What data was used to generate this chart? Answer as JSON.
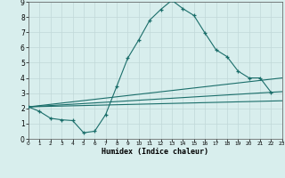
{
  "xlabel": "Humidex (Indice chaleur)",
  "background_color": "#d8eeed",
  "line_color": "#1a6e6a",
  "xlim": [
    0,
    23
  ],
  "ylim": [
    0,
    9
  ],
  "xticks": [
    0,
    1,
    2,
    3,
    4,
    5,
    6,
    7,
    8,
    9,
    10,
    11,
    12,
    13,
    14,
    15,
    16,
    17,
    18,
    19,
    20,
    21,
    22,
    23
  ],
  "yticks": [
    0,
    1,
    2,
    3,
    4,
    5,
    6,
    7,
    8,
    9
  ],
  "main_series": {
    "x": [
      0,
      1,
      2,
      3,
      4,
      5,
      6,
      7,
      8,
      9,
      10,
      11,
      12,
      13,
      14,
      15,
      16,
      17,
      18,
      19,
      20,
      21,
      22,
      23
    ],
    "y": [
      2.1,
      1.8,
      1.35,
      1.25,
      1.2,
      0.4,
      0.5,
      1.6,
      3.45,
      5.3,
      6.5,
      7.8,
      8.5,
      9.1,
      8.55,
      8.1,
      6.95,
      5.85,
      5.4,
      4.45,
      4.0,
      4.0,
      3.05,
      null
    ]
  },
  "ref_lines": [
    {
      "x": [
        0,
        23
      ],
      "y": [
        2.1,
        4.0
      ]
    },
    {
      "x": [
        0,
        23
      ],
      "y": [
        2.1,
        3.1
      ]
    },
    {
      "x": [
        0,
        23
      ],
      "y": [
        2.1,
        2.5
      ]
    }
  ]
}
